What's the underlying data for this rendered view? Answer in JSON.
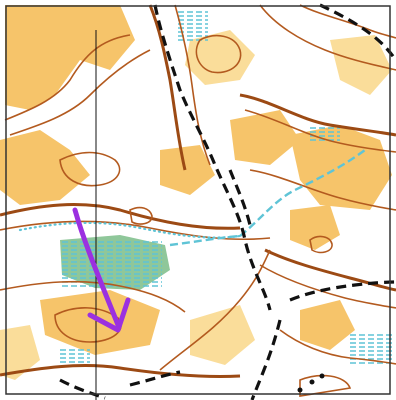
{
  "map": {
    "kind": "orienteering map excerpt",
    "colors": {
      "paper": "#ffffff",
      "open_land": "#f6c46a",
      "open_land_light": "#fadd9a",
      "contour": "#b35a1f",
      "contour_index": "#9c4a14",
      "water": "#5fc4d6",
      "vegetation": "#8fc79a",
      "path": "#111111",
      "frame": "#333333",
      "route_arrow": "#9b30e0"
    },
    "symbols": [
      "open-land-area",
      "contour-line",
      "index-contour-line",
      "path-dashed",
      "stream-dotted",
      "marsh-hatched",
      "green-vegetation",
      "magnetic-north-line",
      "route-arrow"
    ]
  }
}
